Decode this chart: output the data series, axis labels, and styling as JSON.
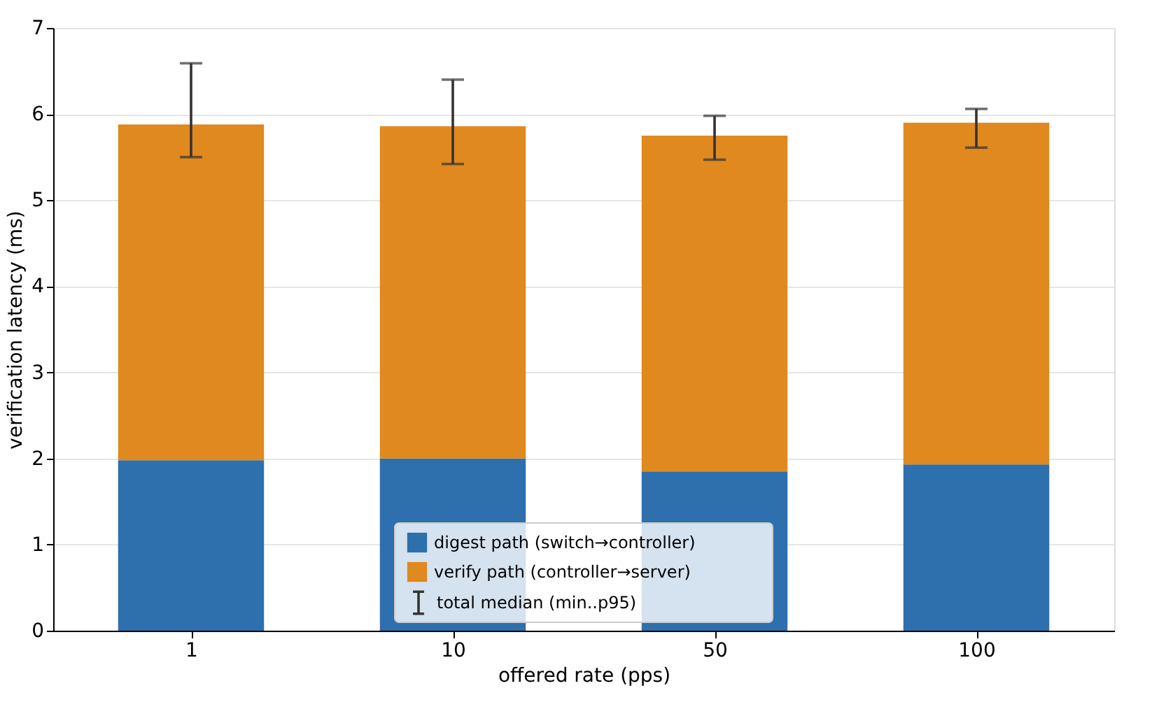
{
  "chart_data": {
    "type": "bar",
    "stacked": true,
    "xlabel": "offered rate (pps)",
    "ylabel": "verification latency (ms)",
    "categories": [
      "1",
      "10",
      "50",
      "100"
    ],
    "series": [
      {
        "name": "digest path (switch→controller)",
        "color": "#2e6fad",
        "values": [
          1.98,
          2.0,
          1.85,
          1.93
        ]
      },
      {
        "name": "verify path (controller→server)",
        "color": "#e0891e",
        "values": [
          3.9,
          3.86,
          3.9,
          3.97
        ],
        "errors": [
          [
            5.5,
            6.59
          ],
          [
            5.42,
            6.4
          ],
          [
            5.47,
            5.98
          ],
          [
            5.61,
            6.06
          ]
        ]
      }
    ],
    "annotations": [
      "total median (min..p95)"
    ],
    "ylim": [
      0,
      7
    ],
    "yticks": [
      0,
      1,
      2,
      3,
      4,
      5,
      6,
      7
    ],
    "grid": "y",
    "legend": "bottom"
  }
}
